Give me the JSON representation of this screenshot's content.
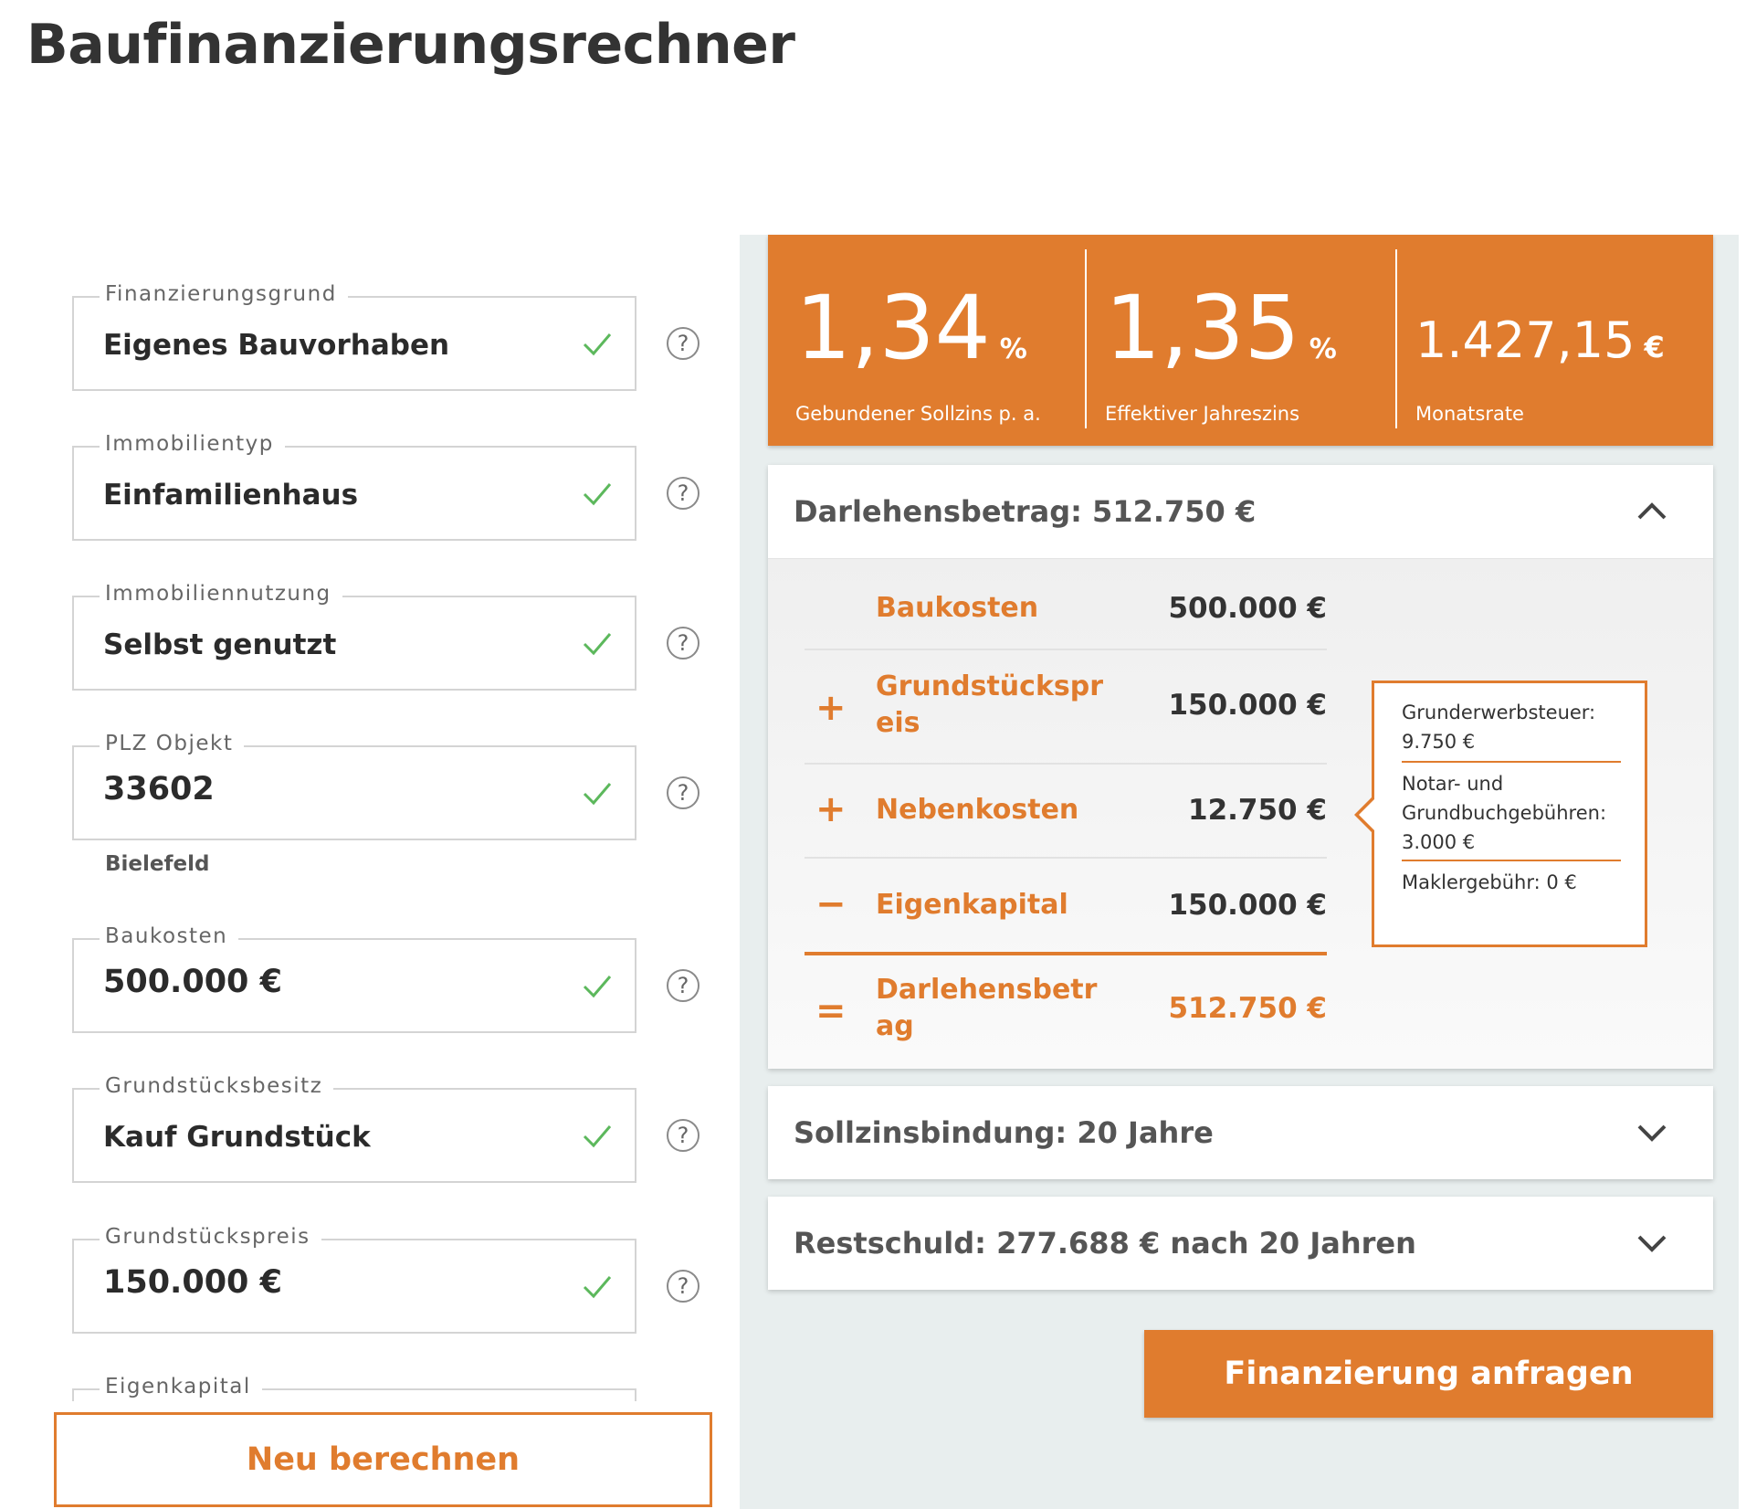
{
  "page_title": "Baufinanzierungsrechner",
  "form": {
    "fields": [
      {
        "label": "Finanzierungsgrund",
        "value": "Eigenes Bauvorhaben"
      },
      {
        "label": "Immobilientyp",
        "value": "Einfamilienhaus"
      },
      {
        "label": "Immobiliennutzung",
        "value": "Selbst genutzt"
      },
      {
        "label": "PLZ Objekt",
        "value": "33602",
        "sub": "Bielefeld"
      },
      {
        "label": "Baukosten",
        "value": "500.000 €"
      },
      {
        "label": "Grundstücksbesitz",
        "value": "Kauf Grundstück"
      },
      {
        "label": "Grundstückspreis",
        "value": "150.000 €"
      },
      {
        "label": "Eigenkapital"
      }
    ],
    "help_glyph": "?",
    "recalc_label": "Neu berechnen"
  },
  "rates": {
    "sollzins": {
      "value": "1,34",
      "unit": "%",
      "label": "Gebundener Sollzins p. a."
    },
    "effektiv": {
      "value": "1,35",
      "unit": "%",
      "label": "Effektiver Jahreszins"
    },
    "rate": {
      "value": "1.427,15",
      "unit": "€",
      "label": "Monatsrate"
    }
  },
  "loan": {
    "title": "Darlehensbetrag: 512.750 €",
    "rows": [
      {
        "op": "",
        "label": "Baukosten",
        "value": "500.000 €"
      },
      {
        "op": "+",
        "label": "Grundstückspreis",
        "value": "150.000 €"
      },
      {
        "op": "+",
        "label": "Nebenkosten",
        "value": "12.750 €"
      },
      {
        "op": "−",
        "label": "Eigenkapital",
        "value": "150.000 €"
      },
      {
        "op": "=",
        "label": "Darlehensbetrag",
        "value": "512.750 €"
      }
    ],
    "tooltip": [
      "Grunderwerbsteuer: 9.750 €",
      "Notar- und Grundbuchgebühren: 3.000 €",
      "Maklergebühr: 0 €"
    ]
  },
  "sollzinsbindung": {
    "title": "Sollzinsbindung: 20 Jahre"
  },
  "restschuld": {
    "title": "Restschuld: 277.688 € nach 20 Jahren"
  },
  "cta_label": "Finanzierung anfragen",
  "icons": {
    "check": "check-icon",
    "help": "help-icon",
    "chevron_up": "chevron-up-icon",
    "chevron_down": "chevron-down-icon"
  },
  "colors": {
    "accent": "#e07c2e",
    "check": "#5cb85c",
    "panel_bg": "#e8eeee",
    "text": "#333333"
  }
}
